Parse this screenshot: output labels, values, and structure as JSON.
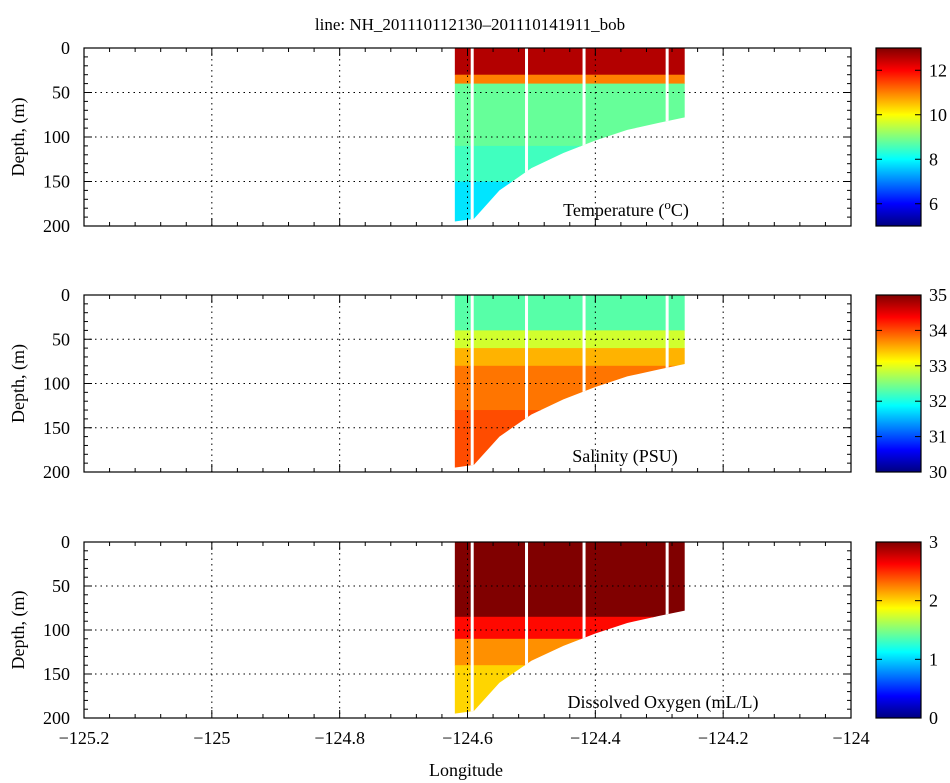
{
  "chart_data": {
    "type": "heatmap",
    "title": "line: NH_201110112130–201110141911_bob",
    "xlabel": "Longitude",
    "xlim": [
      -125.2,
      -124.0
    ],
    "xticks": [
      -125.2,
      -125.0,
      -124.8,
      -124.6,
      -124.4,
      -124.2,
      -124.0
    ],
    "xtick_labels": [
      "−125.2",
      "−125",
      "−124.8",
      "−124.6",
      "−124.4",
      "−124.2",
      "−124"
    ],
    "grid": true,
    "colormap": "jet",
    "section_edge_longitude": -124.26,
    "bottom_profile": [
      {
        "lon": -124.62,
        "depth": 195
      },
      {
        "lon": -124.59,
        "depth": 192
      },
      {
        "lon": -124.55,
        "depth": 160
      },
      {
        "lon": -124.5,
        "depth": 135
      },
      {
        "lon": -124.45,
        "depth": 118
      },
      {
        "lon": -124.4,
        "depth": 104
      },
      {
        "lon": -124.35,
        "depth": 92
      },
      {
        "lon": -124.3,
        "depth": 84
      },
      {
        "lon": -124.26,
        "depth": 78
      }
    ],
    "panels": [
      {
        "label_main": "Temperature (",
        "label_sup": "o",
        "label_tail": "C)",
        "ylabel": "Depth, (m)",
        "ylim": [
          0,
          200
        ],
        "yticks": [
          0,
          50,
          100,
          150,
          200
        ],
        "colorbar": {
          "range": [
            5,
            13
          ],
          "ticks": [
            6,
            8,
            10,
            12
          ]
        },
        "layers": [
          {
            "depth_top": 0,
            "value": 12.6
          },
          {
            "depth_top": 30,
            "value": 11.0
          },
          {
            "depth_top": 40,
            "value": 8.8
          },
          {
            "depth_top": 110,
            "value": 8.5
          },
          {
            "depth_top": 150,
            "value": 7.8
          }
        ]
      },
      {
        "label_main": "Salinity (PSU)",
        "label_sup": "",
        "label_tail": "",
        "ylabel": "Depth, (m)",
        "ylim": [
          0,
          200
        ],
        "yticks": [
          0,
          50,
          100,
          150,
          200
        ],
        "colorbar": {
          "range": [
            30,
            35
          ],
          "ticks": [
            30,
            31,
            32,
            33,
            34,
            35
          ]
        },
        "layers": [
          {
            "depth_top": 0,
            "value": 32.3
          },
          {
            "depth_top": 40,
            "value": 32.9
          },
          {
            "depth_top": 60,
            "value": 33.5
          },
          {
            "depth_top": 80,
            "value": 33.8
          },
          {
            "depth_top": 130,
            "value": 34.0
          }
        ]
      },
      {
        "label_main": "Dissolved Oxygen (mL/L)",
        "label_sup": "",
        "label_tail": "",
        "ylabel": "Depth, (m)",
        "ylim": [
          0,
          200
        ],
        "yticks": [
          0,
          50,
          100,
          150,
          200
        ],
        "colorbar": {
          "range": [
            0,
            3
          ],
          "ticks": [
            0,
            1,
            2,
            3
          ]
        },
        "layers": [
          {
            "depth_top": 0,
            "value": 3.0
          },
          {
            "depth_top": 85,
            "value": 2.6
          },
          {
            "depth_top": 110,
            "value": 2.2
          },
          {
            "depth_top": 140,
            "value": 2.0
          }
        ]
      }
    ]
  }
}
